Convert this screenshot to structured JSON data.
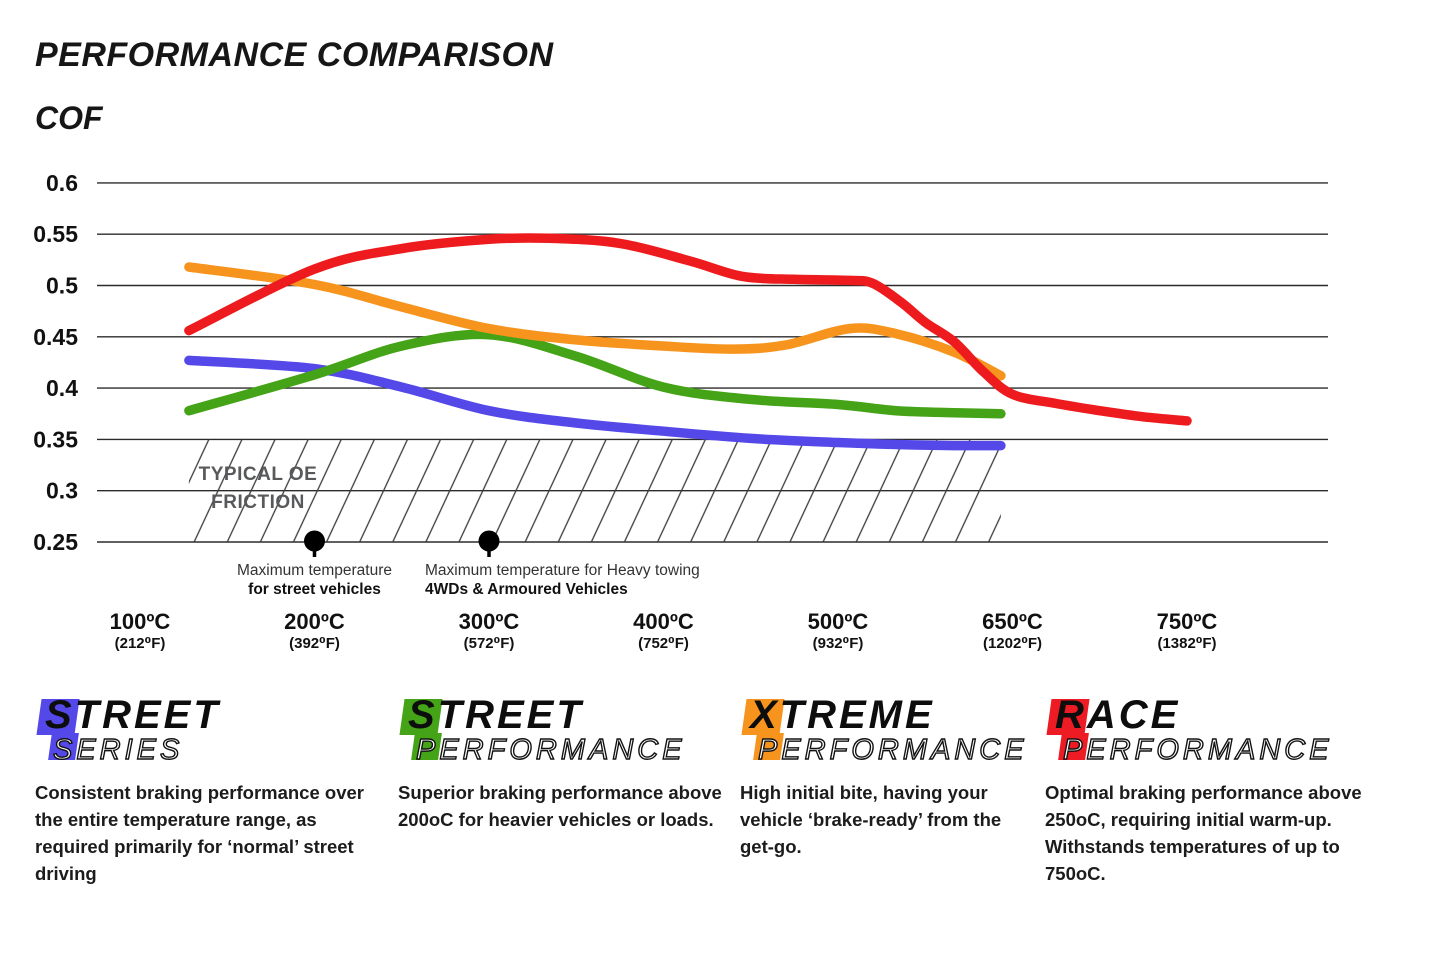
{
  "header": {
    "title": "PERFORMANCE COMPARISON",
    "ylabel": "COF"
  },
  "chart_data": {
    "type": "line",
    "title": "PERFORMANCE COMPARISON",
    "ylabel": "COF",
    "xlabel": "",
    "grid": true,
    "legend_position": "bottom",
    "ylim": [
      0.25,
      0.6
    ],
    "yticks": [
      {
        "v": 0.6,
        "label": "0.6"
      },
      {
        "v": 0.55,
        "label": "0.55"
      },
      {
        "v": 0.5,
        "label": "0.5"
      },
      {
        "v": 0.45,
        "label": "0.45"
      },
      {
        "v": 0.4,
        "label": "0.4"
      },
      {
        "v": 0.35,
        "label": "0.35"
      },
      {
        "v": 0.3,
        "label": "0.3"
      },
      {
        "v": 0.25,
        "label": "0.25"
      }
    ],
    "xticks": [
      {
        "t": 100,
        "c": "100ºC",
        "f": "(212⁰F)"
      },
      {
        "t": 200,
        "c": "200ºC",
        "f": "(392⁰F)"
      },
      {
        "t": 300,
        "c": "300ºC",
        "f": "(572⁰F)"
      },
      {
        "t": 400,
        "c": "400ºC",
        "f": "(752⁰F)"
      },
      {
        "t": 500,
        "c": "500ºC",
        "f": "(932⁰F)"
      },
      {
        "t": 650,
        "c": "650ºC",
        "f": "(1202⁰F)"
      },
      {
        "t": 750,
        "c": "750ºC",
        "f": "(1382⁰F)"
      }
    ],
    "oe_zone": {
      "line1": "TYPICAL OE",
      "line2": "FRICTION",
      "from_temp": 128,
      "to_temp": 640,
      "top_cof": 0.35,
      "bottom_cof": 0.25
    },
    "markers": [
      {
        "temp": 200,
        "align": "center",
        "line1": "Maximum temperature",
        "line2": "for street vehicles"
      },
      {
        "temp": 300,
        "align": "left",
        "line1": "Maximum temperature for Heavy towing",
        "line2": "4WDs & Armoured Vehicles"
      }
    ],
    "series": [
      {
        "name": "Street Series",
        "color": "#5449e8",
        "points": [
          [
            128,
            0.427
          ],
          [
            200,
            0.419
          ],
          [
            250,
            0.401
          ],
          [
            300,
            0.378
          ],
          [
            350,
            0.366
          ],
          [
            400,
            0.358
          ],
          [
            450,
            0.351
          ],
          [
            500,
            0.347
          ],
          [
            550,
            0.345
          ],
          [
            600,
            0.344
          ],
          [
            640,
            0.344
          ]
        ]
      },
      {
        "name": "Street Performance",
        "color": "#44a316",
        "points": [
          [
            128,
            0.378
          ],
          [
            200,
            0.413
          ],
          [
            250,
            0.441
          ],
          [
            300,
            0.452
          ],
          [
            350,
            0.431
          ],
          [
            400,
            0.401
          ],
          [
            450,
            0.389
          ],
          [
            500,
            0.384
          ],
          [
            550,
            0.378
          ],
          [
            600,
            0.376
          ],
          [
            640,
            0.375
          ]
        ]
      },
      {
        "name": "Xtreme Performance",
        "color": "#f7941d",
        "points": [
          [
            128,
            0.518
          ],
          [
            200,
            0.501
          ],
          [
            250,
            0.479
          ],
          [
            300,
            0.458
          ],
          [
            350,
            0.447
          ],
          [
            400,
            0.441
          ],
          [
            440,
            0.438
          ],
          [
            470,
            0.442
          ],
          [
            510,
            0.458
          ],
          [
            550,
            0.453
          ],
          [
            600,
            0.435
          ],
          [
            640,
            0.412
          ]
        ]
      },
      {
        "name": "Race Performance",
        "color": "#ee1b1e",
        "points": [
          [
            128,
            0.456
          ],
          [
            200,
            0.516
          ],
          [
            250,
            0.536
          ],
          [
            300,
            0.545
          ],
          [
            335,
            0.546
          ],
          [
            375,
            0.541
          ],
          [
            415,
            0.524
          ],
          [
            445,
            0.509
          ],
          [
            475,
            0.506
          ],
          [
            510,
            0.505
          ],
          [
            530,
            0.502
          ],
          [
            555,
            0.483
          ],
          [
            575,
            0.464
          ],
          [
            600,
            0.445
          ],
          [
            625,
            0.416
          ],
          [
            650,
            0.394
          ],
          [
            675,
            0.385
          ],
          [
            700,
            0.378
          ],
          [
            725,
            0.372
          ],
          [
            750,
            0.368
          ]
        ]
      }
    ]
  },
  "legend": [
    {
      "word1": "STREET",
      "word2": "SERIES",
      "color": "#5449e8",
      "description": "Consistent braking performance over the entire temperature range, as required primarily for ‘normal’ street driving"
    },
    {
      "word1": "STREET",
      "word2": "PERFORMANCE",
      "color": "#44a316",
      "description": "Superior braking performance above 200oC for heavier vehicles or loads."
    },
    {
      "word1": "XTREME",
      "word2": "PERFORMANCE",
      "color": "#f7941d",
      "description": "High initial bite, having your vehicle ‘brake-ready’ from the get-go."
    },
    {
      "word1": "RACE",
      "word2": "PERFORMANCE",
      "color": "#ed1c24",
      "description": "Optimal braking performance above 250oC, requiring initial warm-up. Withstands temperatures of up to 750oC."
    }
  ]
}
